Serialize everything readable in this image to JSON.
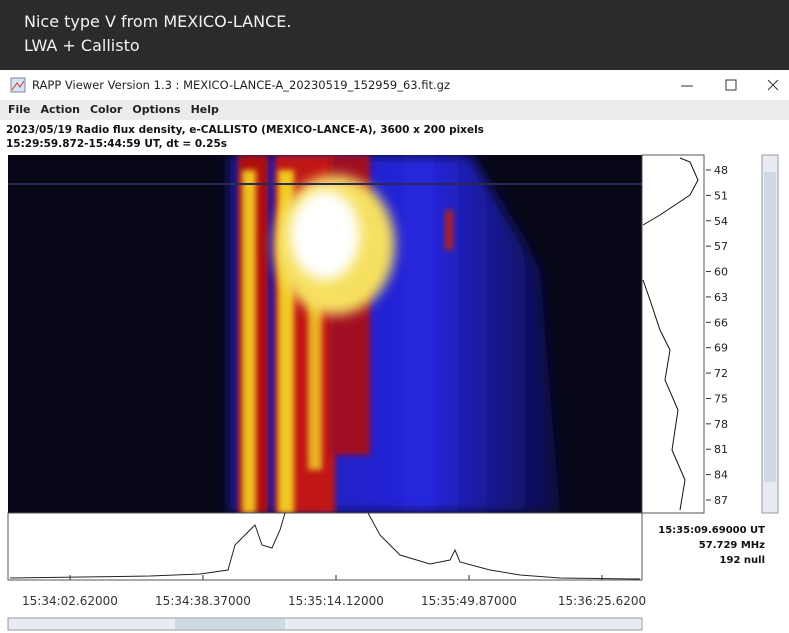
{
  "post": {
    "lines": [
      "Nice type V from MEXICO-LANCE.",
      "LWA + Callisto"
    ]
  },
  "window": {
    "title": "RAPP Viewer Version 1.3 : MEXICO-LANCE-A_20230519_152959_63.fit.gz",
    "menu": [
      "File",
      "Action",
      "Color",
      "Options",
      "Help"
    ]
  },
  "info": [
    "2023/05/19  Radio flux density, e-CALLISTO (MEXICO-LANCE-A),  3600 x 200 pixels",
    "15:29:59.872-15:44:59 UT,  dt = 0.25s"
  ],
  "frequency_ticks": [
    48,
    51,
    54,
    57,
    60,
    63,
    66,
    69,
    72,
    75,
    78,
    81,
    84,
    87
  ],
  "time_ticks": [
    "15:34:02.62000",
    "15:34:38.37000",
    "15:35:14.12000",
    "15:35:49.87000",
    "15:36:25.6200"
  ],
  "readout": [
    "15:35:09.69000 UT",
    "57.729 MHz",
    "192 null"
  ]
}
